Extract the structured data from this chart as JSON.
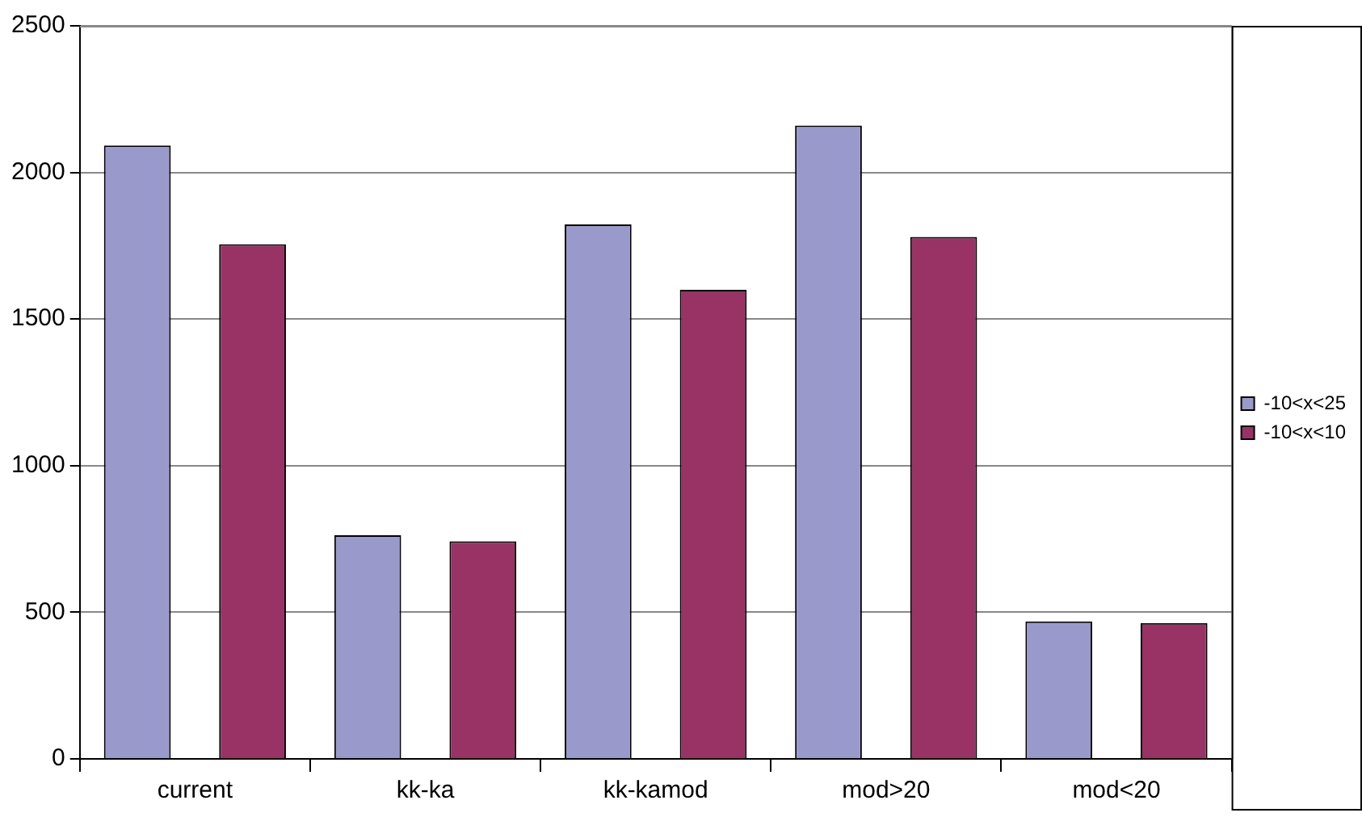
{
  "chart_data": {
    "type": "bar",
    "categories": [
      "current",
      "kk-ka",
      "kk-kamod",
      "mod>20",
      "mod<20"
    ],
    "series": [
      {
        "name": "-10<x<25",
        "color": "#9999cc",
        "values": [
          2092,
          763,
          1823,
          2160,
          469
        ]
      },
      {
        "name": "-10<x<10",
        "color": "#993366",
        "values": [
          1755,
          742,
          1600,
          1780,
          463
        ]
      }
    ],
    "ylim": [
      0,
      2500
    ],
    "yticks": [
      0,
      500,
      1000,
      1500,
      2000,
      2500
    ],
    "grid": "y",
    "legend": "right"
  }
}
